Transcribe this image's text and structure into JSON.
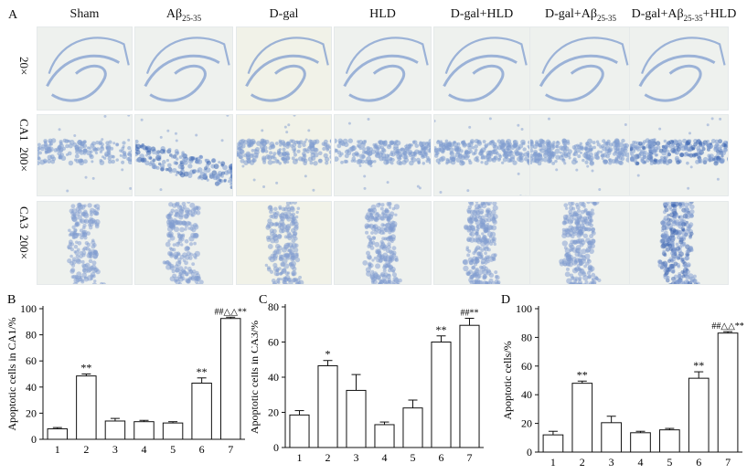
{
  "panel_labels": [
    "A",
    "B",
    "C",
    "D"
  ],
  "columns": [
    "Sham",
    "Aβ25-35",
    "D-gal",
    "HLD",
    "D-gal+HLD",
    "D-gal+Aβ25-35",
    "D-gal+Aβ25-35+HLD"
  ],
  "rows": [
    {
      "label": "20×",
      "sub": ""
    },
    {
      "label": "200×",
      "sub": "CA1"
    },
    {
      "label": "200×",
      "sub": "CA3"
    }
  ],
  "colors": {
    "stain": "#7f9ccf",
    "stain_dark": "#3d66b2",
    "tissue": "#eef1ee",
    "axis": "#111111"
  },
  "chart_data": [
    {
      "type": "bar",
      "panel": "B",
      "categories": [
        "1",
        "2",
        "3",
        "4",
        "5",
        "6",
        "7"
      ],
      "values": [
        8,
        48.5,
        14,
        13.5,
        12.5,
        43,
        92.5
      ],
      "errors": [
        1,
        1.5,
        2,
        1,
        1,
        4,
        1
      ],
      "annotations": [
        "",
        "**",
        "",
        "",
        "",
        "**",
        "##△△**"
      ],
      "title": "",
      "xlabel": "",
      "ylabel": "Apoptotic cells in CA1/%",
      "ylim": [
        0,
        100
      ],
      "yticks": [
        0,
        20,
        40,
        60,
        80,
        100
      ],
      "grid": false
    },
    {
      "type": "bar",
      "panel": "C",
      "categories": [
        "1",
        "2",
        "3",
        "4",
        "5",
        "6",
        "7"
      ],
      "values": [
        18.5,
        46.5,
        32.5,
        13,
        22.5,
        60,
        69.5
      ],
      "errors": [
        2.5,
        3,
        9,
        1.5,
        4.5,
        3.5,
        4
      ],
      "annotations": [
        "",
        "*",
        "",
        "",
        "",
        "**",
        "##**"
      ],
      "title": "",
      "xlabel": "",
      "ylabel": "Apoptotic cells in CA3/%",
      "ylim": [
        0,
        80
      ],
      "yticks": [
        0,
        20,
        40,
        60,
        80
      ],
      "grid": false
    },
    {
      "type": "bar",
      "panel": "D",
      "categories": [
        "1",
        "2",
        "3",
        "4",
        "5",
        "6",
        "7"
      ],
      "values": [
        12,
        48,
        20.5,
        13.5,
        15.5,
        51.5,
        83
      ],
      "errors": [
        2.5,
        1.5,
        4.5,
        1,
        1,
        4.5,
        1
      ],
      "annotations": [
        "",
        "**",
        "",
        "",
        "",
        "**",
        "##△△**"
      ],
      "title": "",
      "xlabel": "",
      "ylabel": "Apoptotic cells/%",
      "ylim": [
        0,
        100
      ],
      "yticks": [
        0,
        20,
        40,
        60,
        80,
        100
      ],
      "grid": false
    }
  ]
}
